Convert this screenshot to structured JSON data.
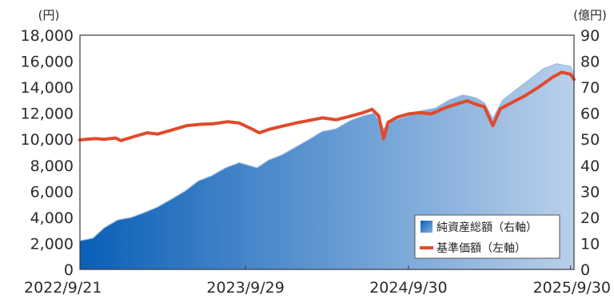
{
  "chart_data": {
    "type": "area",
    "title": "",
    "left_unit": "(円)",
    "right_unit": "(億円)",
    "x_ticks": [
      "2022/9/21",
      "2023/9/29",
      "2024/9/30",
      "2025/9/30"
    ],
    "x_range": [
      "2022-09-21",
      "2025-10-08"
    ],
    "left_axis": {
      "ticks": [
        "18,000",
        "16,000",
        "14,000",
        "12,000",
        "10,000",
        "8,000",
        "6,000",
        "4,000",
        "2,000",
        "0"
      ],
      "range": [
        0,
        18000
      ]
    },
    "right_axis": {
      "ticks": [
        "90",
        "80",
        "70",
        "60",
        "50",
        "40",
        "30",
        "20",
        "10",
        "0"
      ],
      "range": [
        0,
        90
      ]
    },
    "grid": false,
    "legend_position": "bottom-right",
    "series": [
      {
        "name": "純資産総額（右軸）",
        "axis": "right",
        "type": "area",
        "color_start": "#0a5fb8",
        "color_end": "#b9d0ea",
        "points": [
          [
            "2022-09-21",
            11
          ],
          [
            "2022-10-20",
            12
          ],
          [
            "2022-11-15",
            16
          ],
          [
            "2022-12-15",
            19
          ],
          [
            "2023-01-15",
            20
          ],
          [
            "2023-02-15",
            22
          ],
          [
            "2023-03-15",
            24
          ],
          [
            "2023-04-15",
            27
          ],
          [
            "2023-05-15",
            30
          ],
          [
            "2023-06-15",
            34
          ],
          [
            "2023-07-15",
            36
          ],
          [
            "2023-08-15",
            39
          ],
          [
            "2023-09-15",
            41
          ],
          [
            "2023-10-25",
            39
          ],
          [
            "2023-11-20",
            42
          ],
          [
            "2023-12-20",
            44
          ],
          [
            "2024-01-20",
            47
          ],
          [
            "2024-02-20",
            50
          ],
          [
            "2024-03-20",
            53
          ],
          [
            "2024-04-20",
            54
          ],
          [
            "2024-05-20",
            57
          ],
          [
            "2024-06-20",
            59
          ],
          [
            "2024-07-15",
            60
          ],
          [
            "2024-08-05",
            54
          ],
          [
            "2024-08-25",
            57
          ],
          [
            "2024-09-30",
            59
          ],
          [
            "2024-10-30",
            61
          ],
          [
            "2024-11-30",
            62
          ],
          [
            "2024-12-30",
            65
          ],
          [
            "2025-01-30",
            67
          ],
          [
            "2025-02-28",
            66
          ],
          [
            "2025-03-20",
            64
          ],
          [
            "2025-04-08",
            58
          ],
          [
            "2025-04-30",
            65
          ],
          [
            "2025-05-30",
            69
          ],
          [
            "2025-06-30",
            73
          ],
          [
            "2025-07-30",
            77
          ],
          [
            "2025-08-30",
            79
          ],
          [
            "2025-09-30",
            78
          ],
          [
            "2025-10-08",
            75
          ]
        ]
      },
      {
        "name": "基準価額（左軸）",
        "axis": "left",
        "type": "line",
        "color": "#e04a2c",
        "points": [
          [
            "2022-09-21",
            9950
          ],
          [
            "2022-10-05",
            10000
          ],
          [
            "2022-10-25",
            10050
          ],
          [
            "2022-11-15",
            10000
          ],
          [
            "2022-12-10",
            10100
          ],
          [
            "2022-12-22",
            9900
          ],
          [
            "2023-01-20",
            10200
          ],
          [
            "2023-02-20",
            10500
          ],
          [
            "2023-03-15",
            10400
          ],
          [
            "2023-04-15",
            10700
          ],
          [
            "2023-05-20",
            11050
          ],
          [
            "2023-06-20",
            11150
          ],
          [
            "2023-07-20",
            11200
          ],
          [
            "2023-08-20",
            11350
          ],
          [
            "2023-09-15",
            11250
          ],
          [
            "2023-10-10",
            10850
          ],
          [
            "2023-10-30",
            10500
          ],
          [
            "2023-11-20",
            10750
          ],
          [
            "2023-12-20",
            11000
          ],
          [
            "2024-01-20",
            11250
          ],
          [
            "2024-02-20",
            11450
          ],
          [
            "2024-03-20",
            11650
          ],
          [
            "2024-04-20",
            11500
          ],
          [
            "2024-05-20",
            11750
          ],
          [
            "2024-06-20",
            12050
          ],
          [
            "2024-07-10",
            12300
          ],
          [
            "2024-07-25",
            11800
          ],
          [
            "2024-08-05",
            10050
          ],
          [
            "2024-08-15",
            11300
          ],
          [
            "2024-09-05",
            11700
          ],
          [
            "2024-09-30",
            11950
          ],
          [
            "2024-10-25",
            12050
          ],
          [
            "2024-11-20",
            11950
          ],
          [
            "2024-12-20",
            12400
          ],
          [
            "2025-01-20",
            12750
          ],
          [
            "2025-02-10",
            12950
          ],
          [
            "2025-02-28",
            12700
          ],
          [
            "2025-03-20",
            12500
          ],
          [
            "2025-04-08",
            11050
          ],
          [
            "2025-04-25",
            12350
          ],
          [
            "2025-05-20",
            12800
          ],
          [
            "2025-06-20",
            13350
          ],
          [
            "2025-07-20",
            14000
          ],
          [
            "2025-08-20",
            14750
          ],
          [
            "2025-09-10",
            15150
          ],
          [
            "2025-09-30",
            15000
          ],
          [
            "2025-10-08",
            14600
          ]
        ]
      }
    ]
  }
}
